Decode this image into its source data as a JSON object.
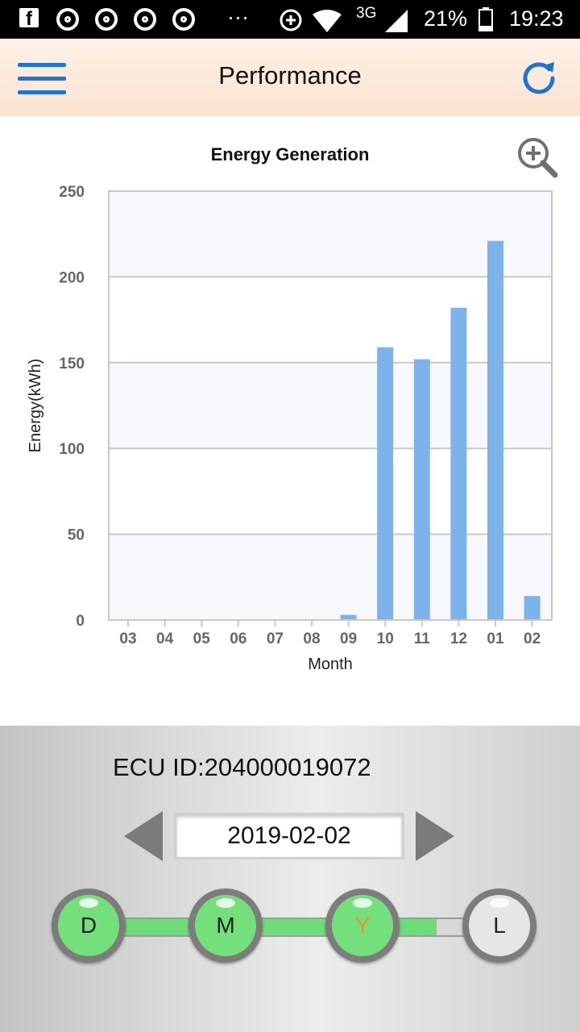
{
  "status_bar": {
    "network": "3G",
    "battery": "21%",
    "time": "19:23",
    "dots": "···"
  },
  "header": {
    "title": "Performance"
  },
  "chart_data": {
    "type": "bar",
    "title": "Energy Generation",
    "xlabel": "Month",
    "ylabel": "Energy(kWh)",
    "categories": [
      "03",
      "04",
      "05",
      "06",
      "07",
      "08",
      "09",
      "10",
      "11",
      "12",
      "01",
      "02"
    ],
    "values": [
      0,
      0,
      0,
      0,
      0,
      0,
      3,
      159,
      152,
      182,
      221,
      14
    ],
    "ylim": [
      0,
      250
    ],
    "yticks": [
      0,
      50,
      100,
      150,
      200,
      250
    ],
    "bar_color": "#7db3ea",
    "grid": true
  },
  "controls": {
    "ecu_id": "ECU ID:204000019072",
    "date": "2019-02-02",
    "range_buttons": [
      "D",
      "M",
      "Y",
      "L"
    ],
    "selected": "Y",
    "selected_color": "#e8912d",
    "active_color": "#74e07c"
  }
}
